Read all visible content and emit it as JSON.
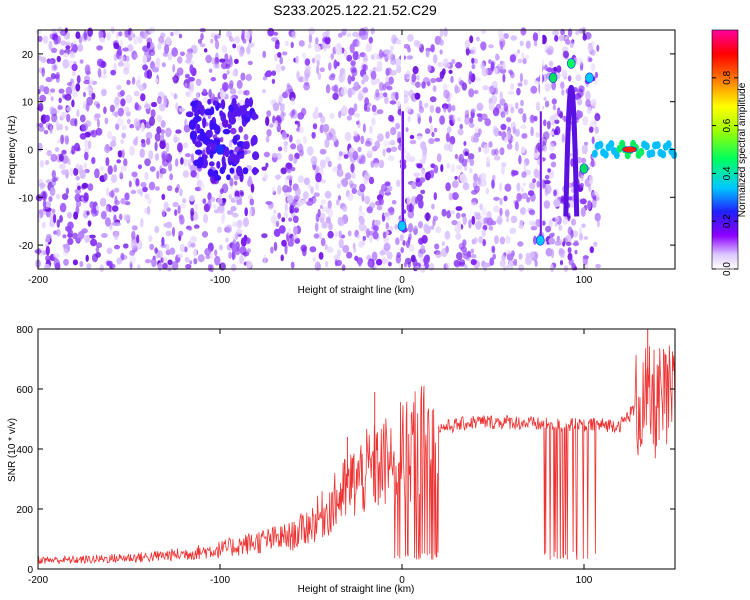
{
  "chart_data": [
    {
      "type": "heatmap",
      "title": "S233.2025.122.21.52.C29",
      "xlabel": "Height of straight line (km)",
      "ylabel": "Frequency (Hz)",
      "xlim": [
        -200,
        150
      ],
      "ylim": [
        -25,
        25
      ],
      "xticks": [
        -200,
        -100,
        0,
        100
      ],
      "yticks": [
        20,
        10,
        0,
        -10,
        -20
      ],
      "colorbar": {
        "label": "Normalized spectral amplitude",
        "range": [
          0,
          1
        ],
        "ticks": [
          0.0,
          0.2,
          0.4,
          0.6,
          0.8
        ],
        "colormap": "rainbow (white-purple-blue-cyan-green-yellow-red-magenta)"
      },
      "features": [
        {
          "x": -100,
          "y": 0,
          "note": "strong blue blob cluster"
        },
        {
          "x": 0,
          "y": -16,
          "note": "vertical streak ending near -16 Hz"
        },
        {
          "x": 76,
          "y": -19,
          "note": "vertical streak"
        },
        {
          "x": 83,
          "y": 15,
          "note": "green blob"
        },
        {
          "x": 93,
          "y": 18,
          "note": "arc peak"
        },
        {
          "x": 100,
          "y": -4,
          "note": "green blob"
        },
        {
          "x": 103,
          "y": 15,
          "note": "cyan blob"
        },
        {
          "x": 125,
          "y": 0,
          "note": "red maximum along 0 Hz band"
        }
      ]
    },
    {
      "type": "line",
      "xlabel": "Height of straight line (km)",
      "ylabel": "SNR (10 * v/v)",
      "xlim": [
        -200,
        150
      ],
      "ylim": [
        0,
        800
      ],
      "xticks": [
        -200,
        -100,
        0,
        100
      ],
      "yticks": [
        0,
        200,
        400,
        600,
        800
      ],
      "color": "#ee3333",
      "x": [
        -200,
        -180,
        -160,
        -140,
        -120,
        -100,
        -80,
        -60,
        -50,
        -40,
        -30,
        -20,
        -10,
        0,
        10,
        20,
        30,
        40,
        60,
        80,
        100,
        120,
        130,
        140,
        150
      ],
      "y": [
        30,
        30,
        35,
        40,
        50,
        65,
        90,
        110,
        150,
        200,
        270,
        320,
        350,
        390,
        420,
        470,
        480,
        490,
        490,
        480,
        480,
        480,
        550,
        550,
        560
      ],
      "spikes": [
        {
          "x": -30,
          "y": 440
        },
        {
          "x": -27,
          "y": 370
        },
        {
          "x": -15,
          "y": 590
        },
        {
          "x": 135,
          "y": 800
        }
      ],
      "dropouts_x_range": [
        [
          -5,
          20
        ],
        [
          78,
          110
        ]
      ]
    }
  ]
}
